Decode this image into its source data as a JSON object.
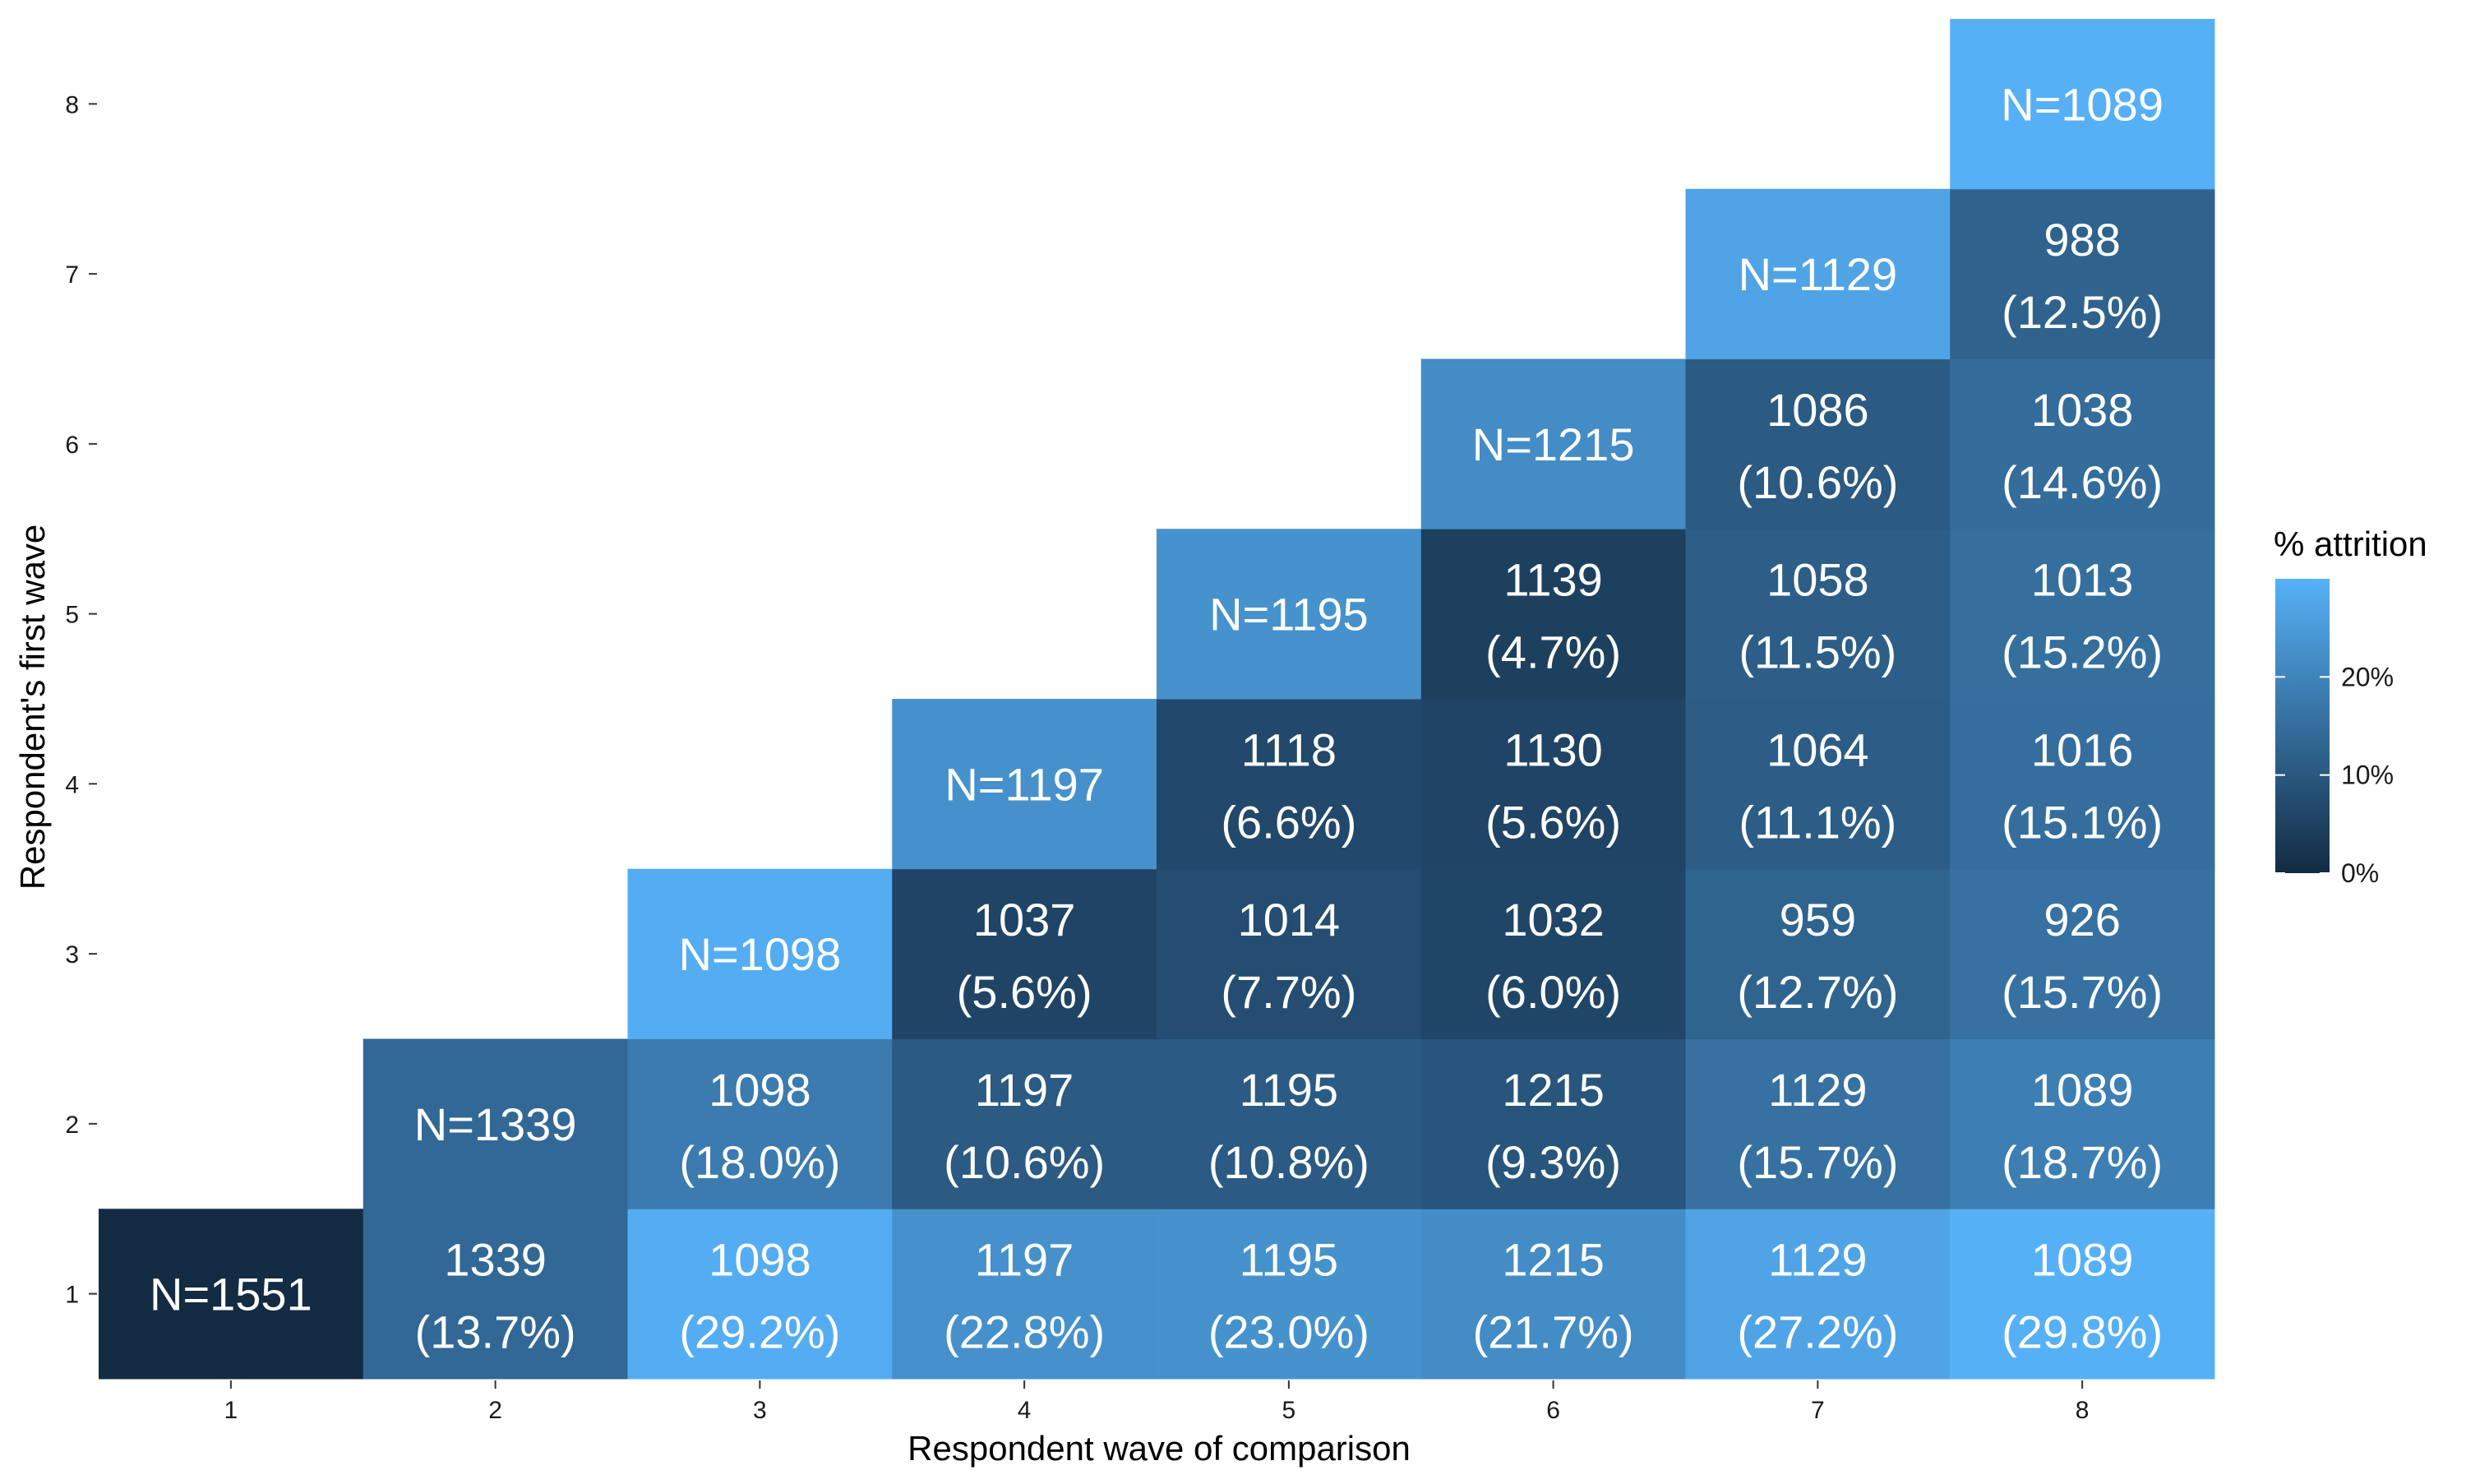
{
  "chart_data": {
    "type": "heatmap",
    "xlabel": "Respondent wave of comparison",
    "ylabel": "Respondent's first wave",
    "x_ticks": [
      "1",
      "2",
      "3",
      "4",
      "5",
      "6",
      "7",
      "8"
    ],
    "y_ticks": [
      "1",
      "2",
      "3",
      "4",
      "5",
      "6",
      "7",
      "8"
    ],
    "color_range": [
      0,
      30
    ],
    "color_low": "#132b43",
    "color_high": "#56b1f7",
    "legend": {
      "title": "% attrition",
      "position": "right",
      "labels": [
        "0%",
        "10%",
        "20%"
      ],
      "values": [
        0,
        10,
        20
      ]
    },
    "cells": [
      {
        "x": 1,
        "y": 1,
        "line1": "N=1551",
        "line2": "",
        "attrition": 0
      },
      {
        "x": 2,
        "y": 1,
        "line1": "1339",
        "line2": "(13.7%)",
        "attrition": 13.7
      },
      {
        "x": 3,
        "y": 1,
        "line1": "1098",
        "line2": "(29.2%)",
        "attrition": 29.2
      },
      {
        "x": 4,
        "y": 1,
        "line1": "1197",
        "line2": "(22.8%)",
        "attrition": 22.8
      },
      {
        "x": 5,
        "y": 1,
        "line1": "1195",
        "line2": "(23.0%)",
        "attrition": 23.0
      },
      {
        "x": 6,
        "y": 1,
        "line1": "1215",
        "line2": "(21.7%)",
        "attrition": 21.7
      },
      {
        "x": 7,
        "y": 1,
        "line1": "1129",
        "line2": "(27.2%)",
        "attrition": 27.2
      },
      {
        "x": 8,
        "y": 1,
        "line1": "1089",
        "line2": "(29.8%)",
        "attrition": 29.8
      },
      {
        "x": 2,
        "y": 2,
        "line1": "N=1339",
        "line2": "",
        "attrition": 13.7
      },
      {
        "x": 3,
        "y": 2,
        "line1": "1098",
        "line2": "(18.0%)",
        "attrition": 18.0
      },
      {
        "x": 4,
        "y": 2,
        "line1": "1197",
        "line2": "(10.6%)",
        "attrition": 10.6
      },
      {
        "x": 5,
        "y": 2,
        "line1": "1195",
        "line2": "(10.8%)",
        "attrition": 10.8
      },
      {
        "x": 6,
        "y": 2,
        "line1": "1215",
        "line2": "(9.3%)",
        "attrition": 9.3
      },
      {
        "x": 7,
        "y": 2,
        "line1": "1129",
        "line2": "(15.7%)",
        "attrition": 15.7
      },
      {
        "x": 8,
        "y": 2,
        "line1": "1089",
        "line2": "(18.7%)",
        "attrition": 18.7
      },
      {
        "x": 3,
        "y": 3,
        "line1": "N=1098",
        "line2": "",
        "attrition": 29.2
      },
      {
        "x": 4,
        "y": 3,
        "line1": "1037",
        "line2": "(5.6%)",
        "attrition": 5.6
      },
      {
        "x": 5,
        "y": 3,
        "line1": "1014",
        "line2": "(7.7%)",
        "attrition": 7.7
      },
      {
        "x": 6,
        "y": 3,
        "line1": "1032",
        "line2": "(6.0%)",
        "attrition": 6.0
      },
      {
        "x": 7,
        "y": 3,
        "line1": "959",
        "line2": "(12.7%)",
        "attrition": 12.7
      },
      {
        "x": 8,
        "y": 3,
        "line1": "926",
        "line2": "(15.7%)",
        "attrition": 15.7
      },
      {
        "x": 4,
        "y": 4,
        "line1": "N=1197",
        "line2": "",
        "attrition": 22.8
      },
      {
        "x": 5,
        "y": 4,
        "line1": "1118",
        "line2": "(6.6%)",
        "attrition": 6.6
      },
      {
        "x": 6,
        "y": 4,
        "line1": "1130",
        "line2": "(5.6%)",
        "attrition": 5.6
      },
      {
        "x": 7,
        "y": 4,
        "line1": "1064",
        "line2": "(11.1%)",
        "attrition": 11.1
      },
      {
        "x": 8,
        "y": 4,
        "line1": "1016",
        "line2": "(15.1%)",
        "attrition": 15.1
      },
      {
        "x": 5,
        "y": 5,
        "line1": "N=1195",
        "line2": "",
        "attrition": 23.0
      },
      {
        "x": 6,
        "y": 5,
        "line1": "1139",
        "line2": "(4.7%)",
        "attrition": 4.7
      },
      {
        "x": 7,
        "y": 5,
        "line1": "1058",
        "line2": "(11.5%)",
        "attrition": 11.5
      },
      {
        "x": 8,
        "y": 5,
        "line1": "1013",
        "line2": "(15.2%)",
        "attrition": 15.2
      },
      {
        "x": 6,
        "y": 6,
        "line1": "N=1215",
        "line2": "",
        "attrition": 21.7
      },
      {
        "x": 7,
        "y": 6,
        "line1": "1086",
        "line2": "(10.6%)",
        "attrition": 10.6
      },
      {
        "x": 8,
        "y": 6,
        "line1": "1038",
        "line2": "(14.6%)",
        "attrition": 14.6
      },
      {
        "x": 7,
        "y": 7,
        "line1": "N=1129",
        "line2": "",
        "attrition": 27.2
      },
      {
        "x": 8,
        "y": 7,
        "line1": "988",
        "line2": "(12.5%)",
        "attrition": 12.5
      },
      {
        "x": 8,
        "y": 8,
        "line1": "N=1089",
        "line2": "",
        "attrition": 29.8
      }
    ]
  }
}
